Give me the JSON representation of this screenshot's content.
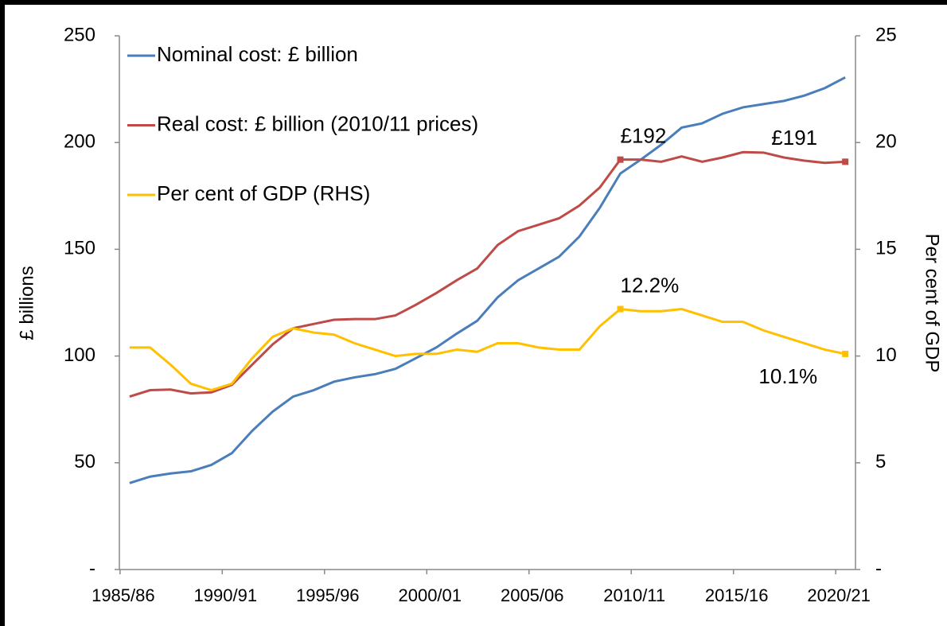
{
  "chart_data": {
    "type": "line",
    "categories": [
      "1985/86",
      null,
      null,
      null,
      null,
      "1990/91",
      null,
      null,
      null,
      null,
      "1995/96",
      null,
      null,
      null,
      null,
      "2000/01",
      null,
      null,
      null,
      null,
      "2005/06",
      null,
      null,
      null,
      null,
      "2010/11",
      null,
      null,
      null,
      null,
      "2015/16",
      null,
      null,
      null,
      null,
      "2020/21"
    ],
    "series": [
      {
        "name": "Nominal cost: £ billion",
        "color": "#4a7ebb",
        "values": [
          40.5,
          43.5,
          45,
          46,
          49,
          54.5,
          65,
          74,
          81,
          84,
          88,
          90,
          91.5,
          94,
          99,
          104,
          110.5,
          116.5,
          127.5,
          135.5,
          141,
          146.5,
          156,
          169.5,
          185.5,
          192,
          199,
          207,
          209,
          213.5,
          216.5,
          218,
          219.5,
          222,
          225.5,
          230.5
        ]
      },
      {
        "name": "Real cost: £ billion (2010/11 prices)",
        "color": "#be4b48",
        "values": [
          81,
          84,
          84.3,
          82.5,
          83,
          86.5,
          96,
          105.5,
          113,
          115,
          117,
          117.3,
          117.3,
          119,
          124,
          129.5,
          135.5,
          141,
          152,
          158.5,
          161.5,
          164.5,
          170.5,
          179,
          192,
          192,
          191,
          193.5,
          191,
          193,
          195.5,
          195.3,
          193,
          191.5,
          190.5,
          191
        ],
        "value_labels": [
          null,
          null,
          null,
          null,
          null,
          null,
          null,
          null,
          null,
          null,
          null,
          null,
          null,
          null,
          null,
          null,
          null,
          null,
          null,
          null,
          null,
          null,
          null,
          null,
          "£192",
          null,
          null,
          null,
          null,
          null,
          null,
          null,
          null,
          null,
          null,
          "£191"
        ]
      },
      {
        "name": "Per cent of GDP (RHS)",
        "color": "#ffc000",
        "axis": "y2",
        "values": [
          10.4,
          10.4,
          9.6,
          8.7,
          8.4,
          8.7,
          9.9,
          10.9,
          11.3,
          11.1,
          11.0,
          10.6,
          10.3,
          10.0,
          10.1,
          10.1,
          10.3,
          10.2,
          10.6,
          10.6,
          10.4,
          10.3,
          10.3,
          11.4,
          12.2,
          12.1,
          12.1,
          12.2,
          11.9,
          11.6,
          11.6,
          11.2,
          10.9,
          10.6,
          10.3,
          10.1
        ],
        "value_labels": [
          null,
          null,
          null,
          null,
          null,
          null,
          null,
          null,
          null,
          null,
          null,
          null,
          null,
          null,
          null,
          null,
          null,
          null,
          null,
          null,
          null,
          null,
          null,
          null,
          "12.2%",
          null,
          null,
          null,
          null,
          null,
          null,
          null,
          null,
          null,
          null,
          "10.1%"
        ]
      }
    ],
    "y_label": "£ billions",
    "y2_label": "Per cent of GDP",
    "ylim": [
      0,
      250
    ],
    "yticks": [
      {
        "value": 0,
        "label": "-"
      },
      50,
      100,
      150,
      200,
      250
    ],
    "y2lim": [
      0,
      25
    ],
    "y2ticks": [
      {
        "value": 0,
        "label": "-"
      },
      5,
      10,
      15,
      20,
      25
    ],
    "legend": "top-left",
    "grid": false
  }
}
